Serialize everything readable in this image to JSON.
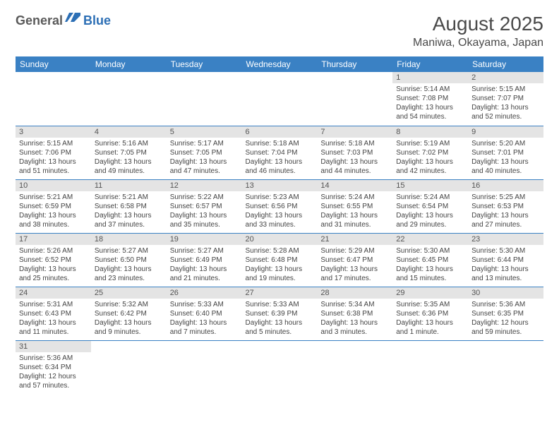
{
  "logo": {
    "part1": "General",
    "part2": "Blue"
  },
  "title": "August 2025",
  "location": "Maniwa, Okayama, Japan",
  "colors": {
    "header_bg": "#3a81c4",
    "header_text": "#ffffff",
    "daynum_bg": "#e4e4e4",
    "border": "#3a81c4",
    "logo_gray": "#5a5a5a",
    "logo_blue": "#2c6fb5"
  },
  "day_labels": [
    "Sunday",
    "Monday",
    "Tuesday",
    "Wednesday",
    "Thursday",
    "Friday",
    "Saturday"
  ],
  "weeks": [
    [
      null,
      null,
      null,
      null,
      null,
      {
        "n": "1",
        "sr": "5:14 AM",
        "ss": "7:08 PM",
        "dl": "13 hours and 54 minutes."
      },
      {
        "n": "2",
        "sr": "5:15 AM",
        "ss": "7:07 PM",
        "dl": "13 hours and 52 minutes."
      }
    ],
    [
      {
        "n": "3",
        "sr": "5:15 AM",
        "ss": "7:06 PM",
        "dl": "13 hours and 51 minutes."
      },
      {
        "n": "4",
        "sr": "5:16 AM",
        "ss": "7:05 PM",
        "dl": "13 hours and 49 minutes."
      },
      {
        "n": "5",
        "sr": "5:17 AM",
        "ss": "7:05 PM",
        "dl": "13 hours and 47 minutes."
      },
      {
        "n": "6",
        "sr": "5:18 AM",
        "ss": "7:04 PM",
        "dl": "13 hours and 46 minutes."
      },
      {
        "n": "7",
        "sr": "5:18 AM",
        "ss": "7:03 PM",
        "dl": "13 hours and 44 minutes."
      },
      {
        "n": "8",
        "sr": "5:19 AM",
        "ss": "7:02 PM",
        "dl": "13 hours and 42 minutes."
      },
      {
        "n": "9",
        "sr": "5:20 AM",
        "ss": "7:01 PM",
        "dl": "13 hours and 40 minutes."
      }
    ],
    [
      {
        "n": "10",
        "sr": "5:21 AM",
        "ss": "6:59 PM",
        "dl": "13 hours and 38 minutes."
      },
      {
        "n": "11",
        "sr": "5:21 AM",
        "ss": "6:58 PM",
        "dl": "13 hours and 37 minutes."
      },
      {
        "n": "12",
        "sr": "5:22 AM",
        "ss": "6:57 PM",
        "dl": "13 hours and 35 minutes."
      },
      {
        "n": "13",
        "sr": "5:23 AM",
        "ss": "6:56 PM",
        "dl": "13 hours and 33 minutes."
      },
      {
        "n": "14",
        "sr": "5:24 AM",
        "ss": "6:55 PM",
        "dl": "13 hours and 31 minutes."
      },
      {
        "n": "15",
        "sr": "5:24 AM",
        "ss": "6:54 PM",
        "dl": "13 hours and 29 minutes."
      },
      {
        "n": "16",
        "sr": "5:25 AM",
        "ss": "6:53 PM",
        "dl": "13 hours and 27 minutes."
      }
    ],
    [
      {
        "n": "17",
        "sr": "5:26 AM",
        "ss": "6:52 PM",
        "dl": "13 hours and 25 minutes."
      },
      {
        "n": "18",
        "sr": "5:27 AM",
        "ss": "6:50 PM",
        "dl": "13 hours and 23 minutes."
      },
      {
        "n": "19",
        "sr": "5:27 AM",
        "ss": "6:49 PM",
        "dl": "13 hours and 21 minutes."
      },
      {
        "n": "20",
        "sr": "5:28 AM",
        "ss": "6:48 PM",
        "dl": "13 hours and 19 minutes."
      },
      {
        "n": "21",
        "sr": "5:29 AM",
        "ss": "6:47 PM",
        "dl": "13 hours and 17 minutes."
      },
      {
        "n": "22",
        "sr": "5:30 AM",
        "ss": "6:45 PM",
        "dl": "13 hours and 15 minutes."
      },
      {
        "n": "23",
        "sr": "5:30 AM",
        "ss": "6:44 PM",
        "dl": "13 hours and 13 minutes."
      }
    ],
    [
      {
        "n": "24",
        "sr": "5:31 AM",
        "ss": "6:43 PM",
        "dl": "13 hours and 11 minutes."
      },
      {
        "n": "25",
        "sr": "5:32 AM",
        "ss": "6:42 PM",
        "dl": "13 hours and 9 minutes."
      },
      {
        "n": "26",
        "sr": "5:33 AM",
        "ss": "6:40 PM",
        "dl": "13 hours and 7 minutes."
      },
      {
        "n": "27",
        "sr": "5:33 AM",
        "ss": "6:39 PM",
        "dl": "13 hours and 5 minutes."
      },
      {
        "n": "28",
        "sr": "5:34 AM",
        "ss": "6:38 PM",
        "dl": "13 hours and 3 minutes."
      },
      {
        "n": "29",
        "sr": "5:35 AM",
        "ss": "6:36 PM",
        "dl": "13 hours and 1 minute."
      },
      {
        "n": "30",
        "sr": "5:36 AM",
        "ss": "6:35 PM",
        "dl": "12 hours and 59 minutes."
      }
    ],
    [
      {
        "n": "31",
        "sr": "5:36 AM",
        "ss": "6:34 PM",
        "dl": "12 hours and 57 minutes."
      },
      null,
      null,
      null,
      null,
      null,
      null
    ]
  ],
  "labels": {
    "sunrise": "Sunrise:",
    "sunset": "Sunset:",
    "daylight": "Daylight:"
  }
}
